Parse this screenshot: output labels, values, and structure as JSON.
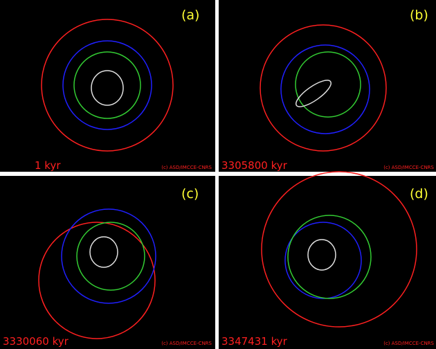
{
  "panels": [
    {
      "label": "(a)",
      "time": "1  kyr",
      "credit": "(c) ASD/IMCCE-CNRS"
    },
    {
      "label": "(b)",
      "time": "3305800  kyr",
      "credit": "(c) ASD/IMCCE-CNRS"
    },
    {
      "label": "(c)",
      "time": "3330060  kyr",
      "credit": "(c) ASD/IMCCE-CNRS"
    },
    {
      "label": "(d)",
      "time": "3347431  kyr",
      "credit": "(c) ASD/IMCCE-CNRS"
    }
  ]
}
